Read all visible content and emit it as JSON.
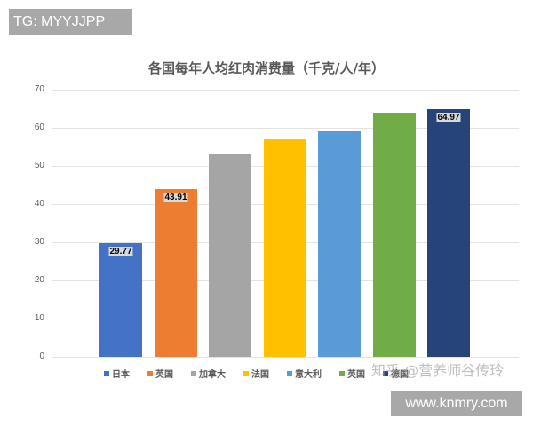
{
  "overlay": {
    "tg_label": "TG: MYYJJPP",
    "site_label": "www.knmry.com",
    "watermark": "知乎 @营养师谷传玲"
  },
  "chart_data": {
    "type": "bar",
    "title": "各国每年人均红肉消费量（千克/人/年）",
    "xlabel": "",
    "ylabel": "",
    "ylim": [
      0,
      70
    ],
    "yticks": [
      "0",
      "10",
      "20",
      "30",
      "40",
      "50",
      "60",
      "70"
    ],
    "grid": true,
    "legend_position": "bottom",
    "categories": [
      "日本",
      "英国",
      "加拿大",
      "法国",
      "意大利",
      "英国",
      "德国"
    ],
    "values": [
      29.77,
      43.91,
      53,
      57,
      59,
      64,
      64.97
    ],
    "data_labels": [
      "29.77",
      "43.91",
      "",
      "",
      "",
      "",
      "64.97"
    ],
    "colors": [
      "#4472c4",
      "#ed7d31",
      "#a5a5a5",
      "#ffc000",
      "#5b9bd5",
      "#70ad47",
      "#264478"
    ],
    "legend": [
      {
        "label": "日本",
        "color": "#4472c4"
      },
      {
        "label": "英国",
        "color": "#ed7d31"
      },
      {
        "label": "加拿大",
        "color": "#a5a5a5"
      },
      {
        "label": "法国",
        "color": "#ffc000"
      },
      {
        "label": "意大利",
        "color": "#5b9bd5"
      },
      {
        "label": "英国",
        "color": "#70ad47"
      },
      {
        "label": "德国",
        "color": "#264478"
      }
    ]
  }
}
